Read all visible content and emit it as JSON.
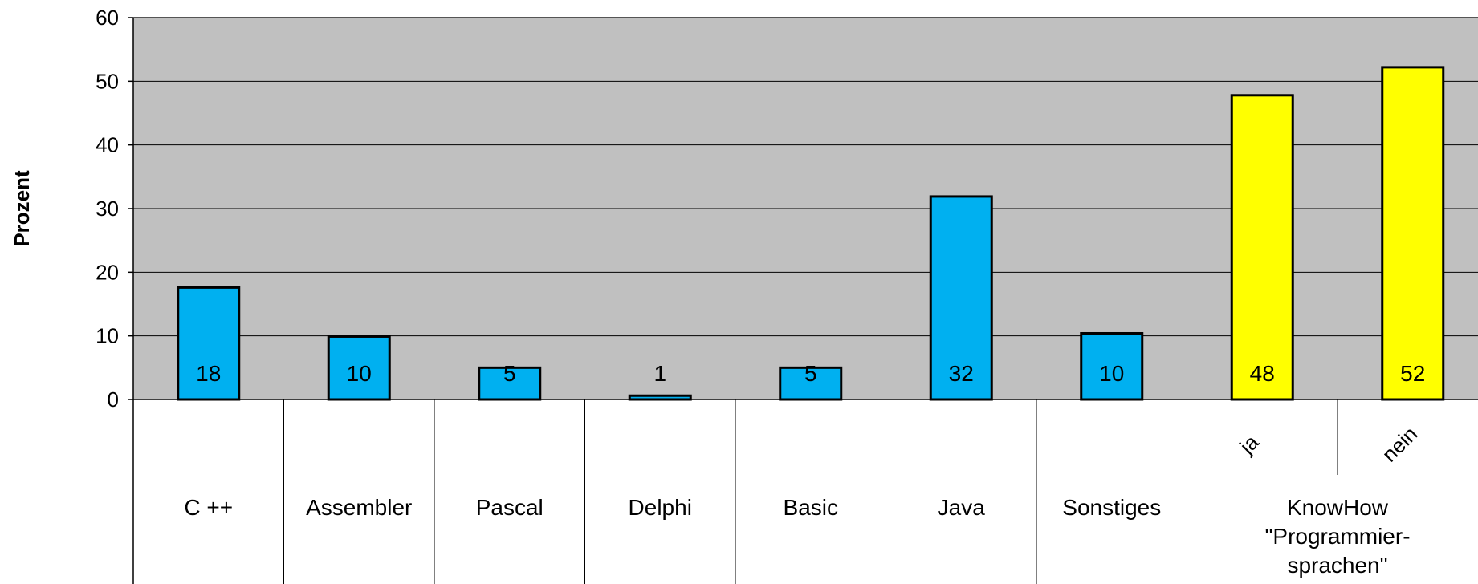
{
  "chart_data": {
    "type": "bar",
    "ylabel": "Prozent",
    "ylim": [
      0,
      60
    ],
    "yticks": [
      0,
      10,
      20,
      30,
      40,
      50,
      60
    ],
    "grid": true,
    "colors": {
      "plot_background": "#c0c0c0",
      "languages": "#00b0f0",
      "knowhow": "#ffff00"
    },
    "categories": [
      {
        "label": "C ++",
        "value": 17.6,
        "data_label": "18",
        "color": "#00b0f0"
      },
      {
        "label": "Assembler",
        "value": 9.9,
        "data_label": "10",
        "color": "#00b0f0"
      },
      {
        "label": "Pascal",
        "value": 5,
        "data_label": "5",
        "color": "#00b0f0"
      },
      {
        "label": "Delphi",
        "value": 0.6,
        "data_label": "1",
        "color": "#00b0f0"
      },
      {
        "label": "Basic",
        "value": 5,
        "data_label": "5",
        "color": "#00b0f0"
      },
      {
        "label": "Java",
        "value": 31.9,
        "data_label": "32",
        "color": "#00b0f0"
      },
      {
        "label": "Sonstiges",
        "value": 10.4,
        "data_label": "10",
        "color": "#00b0f0"
      },
      {
        "label": "ja",
        "value": 47.8,
        "data_label": "48",
        "color": "#ffff00",
        "group": "knowhow"
      },
      {
        "label": "nein",
        "value": 52.2,
        "data_label": "52",
        "color": "#ffff00",
        "group": "knowhow"
      }
    ],
    "groups": [
      {
        "id": "knowhow",
        "label_lines": [
          "KnowHow",
          "\"Programmier-",
          "sprachen\""
        ]
      }
    ]
  }
}
